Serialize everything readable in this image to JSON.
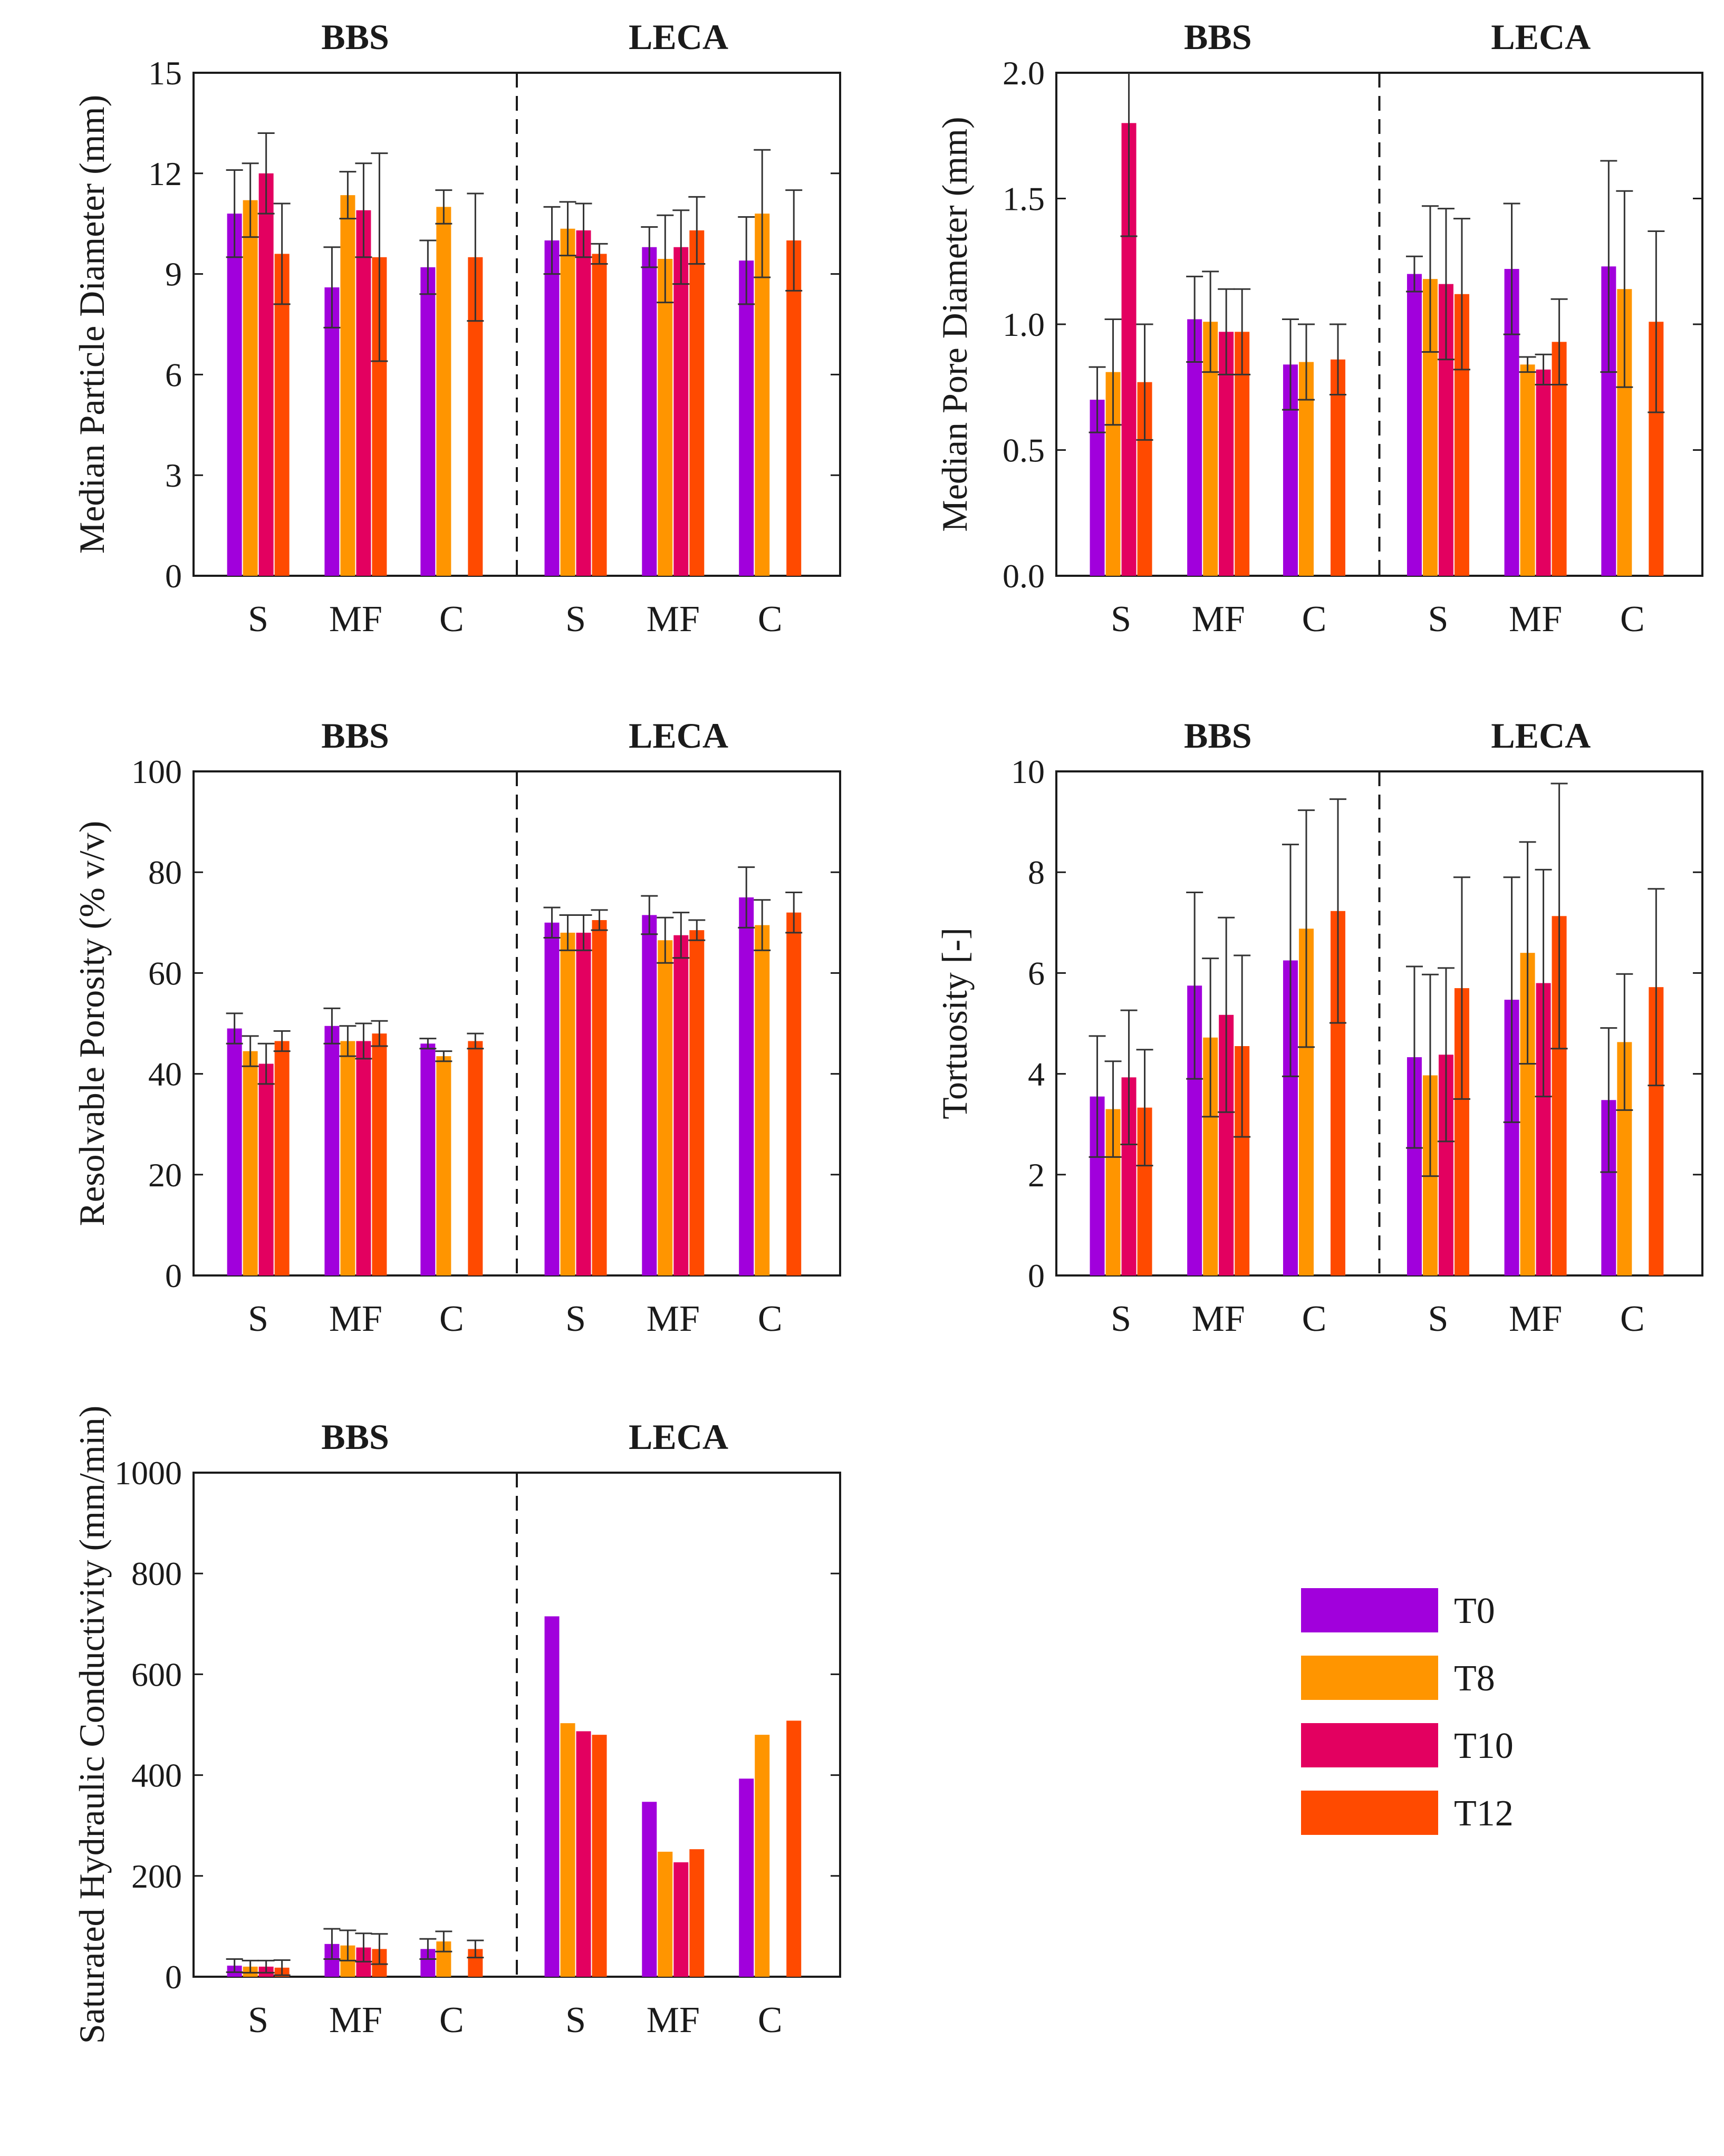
{
  "colors": {
    "T0": "#a100dc",
    "T8": "#ff9500",
    "T10": "#e30060",
    "T12": "#ff4a00",
    "axis": "#1a1a1a",
    "error_bar": "#333333"
  },
  "legend": [
    "T0",
    "T8",
    "T10",
    "T12"
  ],
  "chart_data": [
    {
      "type": "bar",
      "ylabel": "Median Particle Diameter (mm)",
      "ylim": [
        0,
        15
      ],
      "yticks": [
        "0",
        "3",
        "6",
        "9",
        "12",
        "15"
      ],
      "groups": [
        "BBS",
        "LECA"
      ],
      "categories": [
        "S",
        "MF",
        "C"
      ],
      "series": [
        {
          "name": "T0",
          "values": [
            [
              10.8,
              8.6,
              9.2
            ],
            [
              10.0,
              9.8,
              9.4
            ]
          ],
          "errors": [
            [
              1.3,
              1.2,
              0.8
            ],
            [
              1.0,
              0.6,
              1.3
            ]
          ]
        },
        {
          "name": "T8",
          "values": [
            [
              11.2,
              11.35,
              11.0
            ],
            [
              10.35,
              9.45,
              10.8
            ]
          ],
          "errors": [
            [
              1.1,
              0.7,
              0.5
            ],
            [
              0.8,
              1.3,
              1.9
            ]
          ]
        },
        {
          "name": "T10",
          "values": [
            [
              12.0,
              10.9,
              null
            ],
            [
              10.3,
              9.8,
              null
            ]
          ],
          "errors": [
            [
              1.2,
              1.4,
              null
            ],
            [
              0.8,
              1.1,
              null
            ]
          ]
        },
        {
          "name": "T12",
          "values": [
            [
              9.6,
              9.5,
              9.5
            ],
            [
              9.6,
              10.3,
              10.0
            ]
          ],
          "errors": [
            [
              1.5,
              3.1,
              1.9
            ],
            [
              0.3,
              1.0,
              1.5
            ]
          ]
        }
      ]
    },
    {
      "type": "bar",
      "ylabel": "Median Pore Diameter (mm)",
      "ylim": [
        0,
        2
      ],
      "yticks": [
        "0.0",
        "0.5",
        "1.0",
        "1.5",
        "2.0"
      ],
      "groups": [
        "BBS",
        "LECA"
      ],
      "categories": [
        "S",
        "MF",
        "C"
      ],
      "series": [
        {
          "name": "T0",
          "values": [
            [
              0.7,
              1.02,
              0.84
            ],
            [
              1.2,
              1.22,
              1.23
            ]
          ],
          "errors": [
            [
              0.13,
              0.17,
              0.18
            ],
            [
              0.07,
              0.26,
              0.42
            ]
          ]
        },
        {
          "name": "T8",
          "values": [
            [
              0.81,
              1.01,
              0.85
            ],
            [
              1.18,
              0.84,
              1.14
            ]
          ],
          "errors": [
            [
              0.21,
              0.2,
              0.15
            ],
            [
              0.29,
              0.03,
              0.39
            ]
          ]
        },
        {
          "name": "T10",
          "values": [
            [
              1.8,
              0.97,
              null
            ],
            [
              1.16,
              0.82,
              null
            ]
          ],
          "errors": [
            [
              0.45,
              0.17,
              null
            ],
            [
              0.3,
              0.06,
              null
            ]
          ]
        },
        {
          "name": "T12",
          "values": [
            [
              0.77,
              0.97,
              0.86
            ],
            [
              1.12,
              0.93,
              1.01
            ]
          ],
          "errors": [
            [
              0.23,
              0.17,
              0.14
            ],
            [
              0.3,
              0.17,
              0.36
            ]
          ]
        }
      ]
    },
    {
      "type": "bar",
      "ylabel": "Resolvable Porosity (% v/v)",
      "ylim": [
        0,
        100
      ],
      "yticks": [
        "0",
        "20",
        "40",
        "60",
        "80",
        "100"
      ],
      "groups": [
        "BBS",
        "LECA"
      ],
      "categories": [
        "S",
        "MF",
        "C"
      ],
      "series": [
        {
          "name": "T0",
          "values": [
            [
              49,
              49.5,
              46
            ],
            [
              70,
              71.5,
              75
            ]
          ],
          "errors": [
            [
              3,
              3.5,
              1
            ],
            [
              3,
              3.8,
              6
            ]
          ]
        },
        {
          "name": "T8",
          "values": [
            [
              44.5,
              46.5,
              43.5
            ],
            [
              68,
              66.5,
              69.5
            ]
          ],
          "errors": [
            [
              3,
              3,
              1
            ],
            [
              3.5,
              4.5,
              5
            ]
          ]
        },
        {
          "name": "T10",
          "values": [
            [
              42,
              46.5,
              null
            ],
            [
              68,
              67.5,
              null
            ]
          ],
          "errors": [
            [
              4,
              3.5,
              null
            ],
            [
              3.5,
              4.5,
              null
            ]
          ]
        },
        {
          "name": "T12",
          "values": [
            [
              46.5,
              48,
              46.5
            ],
            [
              70.5,
              68.5,
              72
            ]
          ],
          "errors": [
            [
              2,
              2.5,
              1.5
            ],
            [
              2,
              2,
              4
            ]
          ]
        }
      ]
    },
    {
      "type": "bar",
      "ylabel": "Tortuosity [-]",
      "ylim": [
        0,
        10
      ],
      "yticks": [
        "0",
        "2",
        "4",
        "6",
        "8",
        "10"
      ],
      "groups": [
        "BBS",
        "LECA"
      ],
      "categories": [
        "S",
        "MF",
        "C"
      ],
      "series": [
        {
          "name": "T0",
          "values": [
            [
              3.55,
              5.75,
              6.25
            ],
            [
              4.33,
              5.47,
              3.48
            ]
          ],
          "errors": [
            [
              1.2,
              1.85,
              2.3
            ],
            [
              1.8,
              2.43,
              1.43
            ]
          ]
        },
        {
          "name": "T8",
          "values": [
            [
              3.3,
              4.72,
              6.88
            ],
            [
              3.97,
              6.4,
              4.63
            ]
          ],
          "errors": [
            [
              0.95,
              1.57,
              2.35
            ],
            [
              2.0,
              2.2,
              1.35
            ]
          ]
        },
        {
          "name": "T10",
          "values": [
            [
              3.93,
              5.17,
              null
            ],
            [
              4.38,
              5.8,
              null
            ]
          ],
          "errors": [
            [
              1.33,
              1.93,
              null
            ],
            [
              1.72,
              2.25,
              null
            ]
          ]
        },
        {
          "name": "T12",
          "values": [
            [
              3.33,
              4.55,
              7.23
            ],
            [
              5.7,
              7.13,
              5.72
            ]
          ],
          "errors": [
            [
              1.15,
              1.8,
              2.22
            ],
            [
              2.2,
              2.63,
              1.95
            ]
          ]
        }
      ]
    },
    {
      "type": "bar",
      "ylabel": "Saturated Hydraulic Conductivity (mm/min)",
      "ylim": [
        0,
        1000
      ],
      "yticks": [
        "0",
        "200",
        "400",
        "600",
        "800",
        "1000"
      ],
      "groups": [
        "BBS",
        "LECA"
      ],
      "categories": [
        "S",
        "MF",
        "C"
      ],
      "series": [
        {
          "name": "T0",
          "values": [
            [
              22,
              65,
              55
            ],
            [
              715,
              347,
              393
            ]
          ],
          "errors": [
            [
              13,
              30,
              20
            ],
            [
              null,
              null,
              null
            ]
          ]
        },
        {
          "name": "T8",
          "values": [
            [
              20,
              62,
              70
            ],
            [
              503,
              248,
              480
            ]
          ],
          "errors": [
            [
              12,
              30,
              20
            ],
            [
              null,
              null,
              null
            ]
          ]
        },
        {
          "name": "T10",
          "values": [
            [
              20,
              58,
              null
            ],
            [
              487,
              227,
              null
            ]
          ],
          "errors": [
            [
              12,
              28,
              null
            ],
            [
              null,
              null,
              null
            ]
          ]
        },
        {
          "name": "T12",
          "values": [
            [
              18,
              55,
              55
            ],
            [
              480,
              253,
              508
            ]
          ],
          "errors": [
            [
              15,
              30,
              17
            ],
            [
              null,
              null,
              null
            ]
          ]
        }
      ]
    }
  ]
}
